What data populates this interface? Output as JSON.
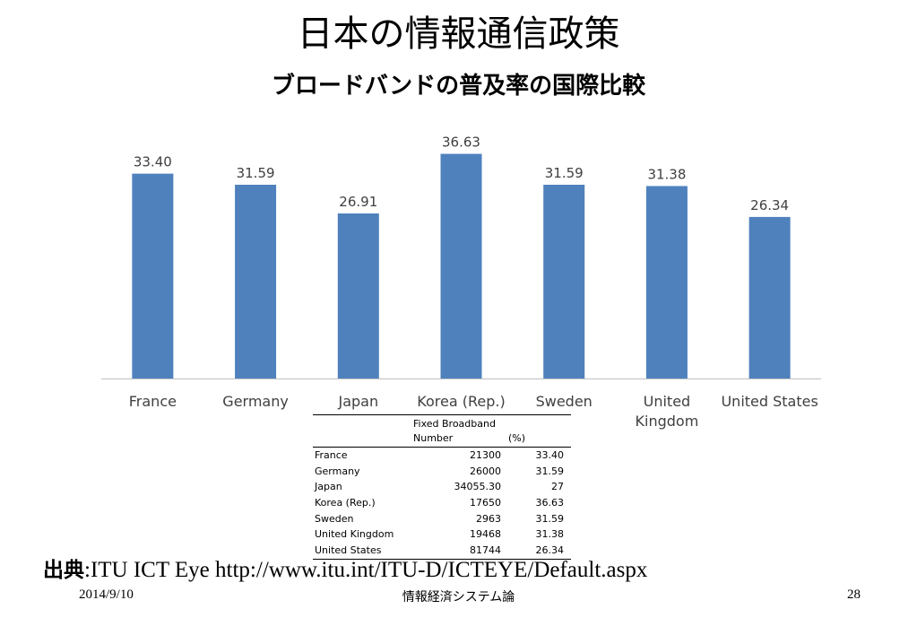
{
  "slide": {
    "title": "日本の情報通信政策",
    "subtitle": "ブロードバンドの普及率の国際比較",
    "source_label": "出典",
    "source_text": ":ITU ICT Eye http://www.itu.int/ITU-D/ICTEYE/Default.aspx",
    "date": "2014/9/10",
    "course": "情報経済システム論",
    "page": "28"
  },
  "colors": {
    "bar": "#4f81bd",
    "axis": "#bfbfbf",
    "text": "#404040"
  },
  "chart_data": {
    "type": "bar",
    "categories": [
      "France",
      "Germany",
      "Japan",
      "Korea (Rep.)",
      "Sweden",
      "United Kingdom",
      "United States"
    ],
    "category_lines": [
      [
        "France"
      ],
      [
        "Germany"
      ],
      [
        "Japan"
      ],
      [
        "Korea (Rep.)"
      ],
      [
        "Sweden"
      ],
      [
        "United",
        "Kingdom"
      ],
      [
        "United States"
      ]
    ],
    "values": [
      33.4,
      31.59,
      26.91,
      36.63,
      31.59,
      31.38,
      26.34
    ],
    "data_labels": [
      "33.40",
      "31.59",
      "26.91",
      "36.63",
      "31.59",
      "31.38",
      "26.34"
    ],
    "ylim": [
      0,
      37
    ],
    "grid": false,
    "legend": "none"
  },
  "table": {
    "header_line1": "Fixed Broadband",
    "header_number": "Number",
    "header_pct": "(%)",
    "rows": [
      [
        "France",
        "21300",
        "33.40"
      ],
      [
        "Germany",
        "26000",
        "31.59"
      ],
      [
        "Japan",
        "34055.30",
        "27"
      ],
      [
        "Korea (Rep.)",
        "17650",
        "36.63"
      ],
      [
        "Sweden",
        "2963",
        "31.59"
      ],
      [
        "United Kingdom",
        "19468",
        "31.38"
      ],
      [
        "United States",
        "81744",
        "26.34"
      ]
    ]
  }
}
